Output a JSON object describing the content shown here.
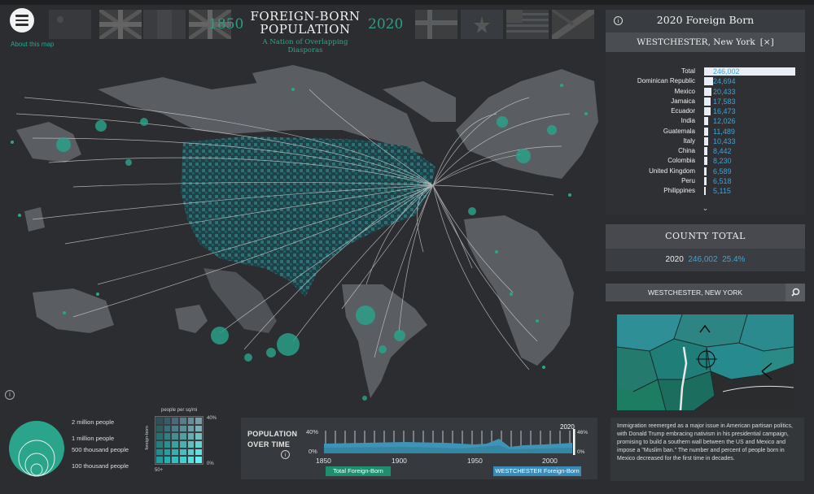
{
  "header": {
    "title_line1": "FOREIGN-BORN",
    "title_line2": "POPULATION",
    "subtitle": "A Nation of Overlapping Diasporas",
    "year_start": "1850",
    "year_end": "2020",
    "about_link": "About this map"
  },
  "colors": {
    "accent_green": "#2aa58c",
    "accent_blue": "#3ea3d8",
    "panel_bg": "#3a3d41",
    "page_bg": "#2b2d30"
  },
  "legend": {
    "circle_labels": [
      "2 million people",
      "1 million people",
      "500 thousand people",
      "100 thousand people"
    ],
    "density_title": "people per sq/mi",
    "density_side": "foreign-born",
    "density_top_pct": "40%",
    "density_bottom_pct": "0%",
    "density_bottom_left": "50+"
  },
  "timeline": {
    "title_line1": "POPULATION",
    "title_line2": "OVER TIME",
    "y_top": "40%",
    "y_bottom": "0%",
    "x_ticks": [
      "1850",
      "1900",
      "1950",
      "2000"
    ],
    "current_year": "2020",
    "current_pct": "46%",
    "current_zero": "0%",
    "pill_total": "Total Foreign-Born",
    "pill_county": "WESTCHESTER Foreign-Born"
  },
  "side_panel": {
    "title": "2020 Foreign Born",
    "county": "WESTCHESTER, New York",
    "close_label": "[×]",
    "rows": [
      {
        "name": "Total",
        "value": "246,002",
        "frac": 1.0
      },
      {
        "name": "Dominican Republic",
        "value": "24,694",
        "frac": 0.1
      },
      {
        "name": "Mexico",
        "value": "20,433",
        "frac": 0.083
      },
      {
        "name": "Jamaica",
        "value": "17,583",
        "frac": 0.071
      },
      {
        "name": "Ecuador",
        "value": "16,473",
        "frac": 0.067
      },
      {
        "name": "India",
        "value": "12,026",
        "frac": 0.049
      },
      {
        "name": "Guatemala",
        "value": "11,489",
        "frac": 0.047
      },
      {
        "name": "Italy",
        "value": "10,433",
        "frac": 0.042
      },
      {
        "name": "China",
        "value": "8,442",
        "frac": 0.034
      },
      {
        "name": "Colombia",
        "value": "8,230",
        "frac": 0.033
      },
      {
        "name": "United Kingdom",
        "value": "6,589",
        "frac": 0.027
      },
      {
        "name": "Peru",
        "value": "6,518",
        "frac": 0.026
      },
      {
        "name": "Philippines",
        "value": "5,115",
        "frac": 0.021
      }
    ],
    "county_total_title": "COUNTY TOTAL",
    "county_total_year": "2020",
    "county_total_value": "246,002",
    "county_total_pct": "25.4%",
    "search_label": "WESTCHESTER, NEW YORK",
    "description": "Immigration reemerged as a major issue in American partisan politics, with Donald Trump embracing nativism in his presidential campaign, promising to build a southern wall between the US and Mexico and impose a \"Muslim ban.\" The number and percent of people born in Mexico decreased for the first time in decades."
  }
}
